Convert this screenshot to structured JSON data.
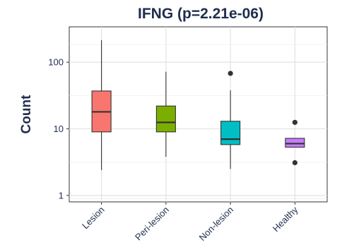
{
  "chart_data": {
    "type": "box",
    "title": "IFNG (p=2.21e-06)",
    "xlabel": "",
    "ylabel": "Count",
    "y_scale": "log10",
    "ylim": [
      0.8,
      340
    ],
    "y_ticks": [
      1,
      10,
      100
    ],
    "y_tick_labels": [
      "1",
      "10",
      "100"
    ],
    "grid": true,
    "legend": "none",
    "categories": [
      "Lesion",
      "Peri-lesion",
      "Non-lesion",
      "Healthy"
    ],
    "boxes": [
      {
        "category": "Lesion",
        "color": "#F8766D",
        "whisker_low": 2.4,
        "q1": 9.0,
        "median": 18.0,
        "q3": 37.0,
        "whisker_high": 215,
        "outliers": []
      },
      {
        "category": "Peri-lesion",
        "color": "#7CAE00",
        "whisker_low": 3.8,
        "q1": 9.0,
        "median": 12.5,
        "q3": 22.0,
        "whisker_high": 72,
        "outliers": []
      },
      {
        "category": "Non-lesion",
        "color": "#00BFC4",
        "whisker_low": 2.5,
        "q1": 5.8,
        "median": 7.0,
        "q3": 13.0,
        "whisker_high": 38,
        "outliers": [
          68
        ]
      },
      {
        "category": "Healthy",
        "color": "#C77CFF",
        "whisker_low": 5.3,
        "q1": 5.3,
        "median": 6.0,
        "q3": 7.2,
        "whisker_high": 7.2,
        "outliers": [
          12.5,
          3.1
        ]
      }
    ]
  }
}
